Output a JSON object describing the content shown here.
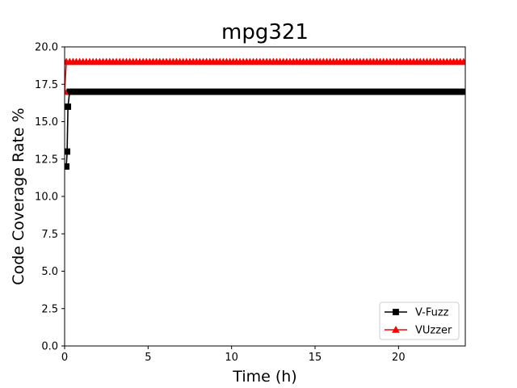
{
  "chart_data": {
    "type": "line",
    "title": "mpg321",
    "xlabel": "Time (h)",
    "ylabel": "Code Coverage Rate %",
    "xlim": [
      0,
      24
    ],
    "ylim": [
      0,
      20
    ],
    "xticks": [
      0,
      5,
      10,
      15,
      20
    ],
    "xtick_labels": [
      "0",
      "5",
      "10",
      "15",
      "20"
    ],
    "yticks": [
      0,
      2.5,
      5,
      7.5,
      10,
      12.5,
      15,
      17.5,
      20
    ],
    "ytick_labels": [
      "0.0",
      "2.5",
      "5.0",
      "7.5",
      "10.0",
      "12.5",
      "15.0",
      "17.5",
      "20.0"
    ],
    "grid": false,
    "legend_position": "lower-right",
    "series": [
      {
        "name": "V-Fuzz",
        "color": "#000000",
        "marker": "square",
        "initial_points": [
          [
            0.1,
            12
          ],
          [
            0.15,
            13
          ],
          [
            0.2,
            16
          ],
          [
            0.3,
            17
          ]
        ],
        "plateau_value": 17,
        "plateau_start": 0.3,
        "plateau_end": 24,
        "sample_interval": 0.2
      },
      {
        "name": "VUzzer",
        "color": "#ff0000",
        "marker": "triangle",
        "initial_points": [
          [
            0.0,
            17
          ],
          [
            0.1,
            19
          ]
        ],
        "plateau_value": 19,
        "plateau_start": 0.1,
        "plateau_end": 24,
        "sample_interval": 0.2
      }
    ]
  }
}
